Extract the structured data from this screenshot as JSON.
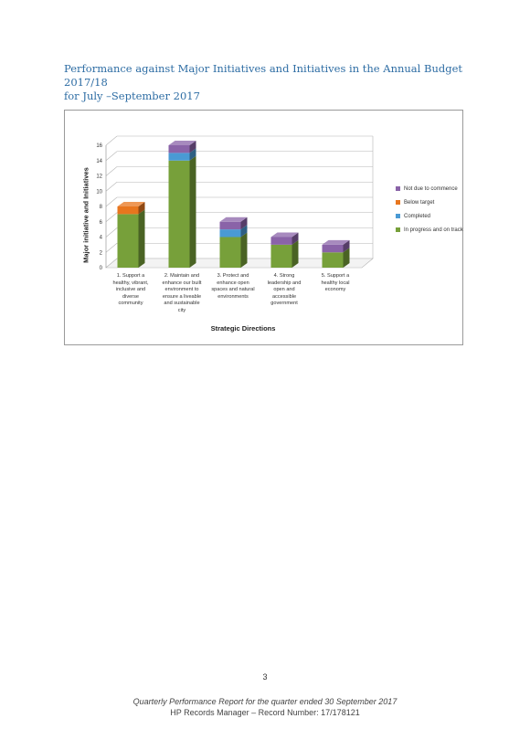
{
  "document": {
    "title_line1": "Performance against Major Initiatives and Initiatives in the Annual Budget 2017/18",
    "title_line2": "for July –September 2017",
    "page_number": "3",
    "footer_line1": "Quarterly Performance Report for the quarter ended 30 September 2017",
    "footer_line2": "HP Records Manager – Record Number: 17/178121"
  },
  "chart_data": {
    "type": "bar",
    "stacked": true,
    "three_d": true,
    "categories": [
      [
        "1. Support a",
        "healthy, vibrant,",
        "inclusive and",
        "diverse",
        "community"
      ],
      [
        "2. Maintain and",
        "enhance our built",
        "environment to",
        "ensure a liveable",
        "and sustainable",
        "city"
      ],
      [
        "3. Protect and",
        "enhance open",
        "spaces and natural",
        "environments"
      ],
      [
        "4. Strong",
        "leadership and",
        "open and",
        "accessible",
        "government"
      ],
      [
        "5. Support a",
        "healthy local",
        "economy"
      ]
    ],
    "series": [
      {
        "name": "In progress and on track",
        "color": "#77a03a",
        "values": [
          7,
          14,
          4,
          3,
          2
        ]
      },
      {
        "name": "Completed",
        "color": "#4a9ad4",
        "values": [
          0,
          1,
          1,
          0,
          0
        ]
      },
      {
        "name": "Below target",
        "color": "#e8761e",
        "values": [
          1,
          0,
          0,
          0,
          0
        ]
      },
      {
        "name": "Not due to commence",
        "color": "#8a63a8",
        "values": [
          0,
          1,
          1,
          1,
          1
        ]
      }
    ],
    "legend_order": [
      "Not due to commence",
      "Below target",
      "Completed",
      "In progress and on track"
    ],
    "legend_position": "right",
    "xlabel": "Strategic Directions",
    "ylabel": "Major initiative and Initiatives",
    "ylim": [
      0,
      16
    ],
    "yticks": [
      0,
      2,
      4,
      6,
      8,
      10,
      12,
      14,
      16
    ],
    "grid": true
  }
}
